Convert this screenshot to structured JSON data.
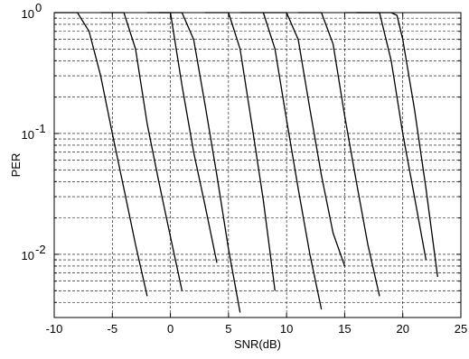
{
  "chart_data": {
    "type": "line",
    "title": "",
    "xlabel": "SNR(dB)",
    "ylabel": "PER",
    "xlim": [
      -10,
      25
    ],
    "ylim": [
      0.003,
      1
    ],
    "yscale": "log",
    "grid": true,
    "xticks": [
      -10,
      -5,
      0,
      5,
      10,
      15,
      20,
      25
    ],
    "xtick_labels": [
      "-10",
      "-5",
      "0",
      "5",
      "10",
      "15",
      "20",
      "25"
    ],
    "yticks": [
      0.01,
      0.1,
      1
    ],
    "ytick_labels": [
      {
        "base": "10",
        "exp": "-2"
      },
      {
        "base": "10",
        "exp": "-1"
      },
      {
        "base": "10",
        "exp": "0"
      }
    ],
    "series": [
      {
        "x": [
          -10,
          -8,
          -7,
          -6,
          -5,
          -4,
          -3,
          -2
        ],
        "y": [
          1,
          1,
          0.7,
          0.3,
          0.1,
          0.035,
          0.012,
          0.0045
        ]
      },
      {
        "x": [
          -6,
          -4,
          -3,
          -2,
          -1,
          0,
          1
        ],
        "y": [
          1,
          1,
          0.5,
          0.12,
          0.04,
          0.014,
          0.005
        ]
      },
      {
        "x": [
          -2,
          0,
          1,
          2,
          3,
          4
        ],
        "y": [
          1,
          1,
          0.25,
          0.07,
          0.025,
          0.0085
        ]
      },
      {
        "x": [
          -1,
          1,
          2,
          3,
          4,
          5,
          6
        ],
        "y": [
          1,
          1,
          0.6,
          0.17,
          0.045,
          0.011,
          0.0033
        ]
      },
      {
        "x": [
          3,
          5,
          6,
          7,
          8,
          9
        ],
        "y": [
          1,
          1,
          0.5,
          0.12,
          0.028,
          0.005
        ]
      },
      {
        "x": [
          6,
          8,
          9,
          10,
          11,
          12,
          13
        ],
        "y": [
          1,
          1,
          0.5,
          0.13,
          0.035,
          0.01,
          0.0035
        ]
      },
      {
        "x": [
          8,
          10,
          11,
          12,
          13,
          14,
          15
        ],
        "y": [
          1,
          1,
          0.6,
          0.16,
          0.045,
          0.015,
          0.008
        ]
      },
      {
        "x": [
          11,
          13,
          14,
          15,
          16,
          17,
          18
        ],
        "y": [
          1,
          1,
          0.55,
          0.14,
          0.04,
          0.012,
          0.0045
        ]
      },
      {
        "x": [
          15,
          18,
          19,
          20,
          21,
          22
        ],
        "y": [
          1,
          1,
          0.4,
          0.1,
          0.03,
          0.009
        ]
      },
      {
        "x": [
          16,
          19,
          19.5,
          20,
          21,
          22,
          23
        ],
        "y": [
          1,
          1,
          0.95,
          0.6,
          0.16,
          0.035,
          0.0065
        ]
      }
    ]
  }
}
